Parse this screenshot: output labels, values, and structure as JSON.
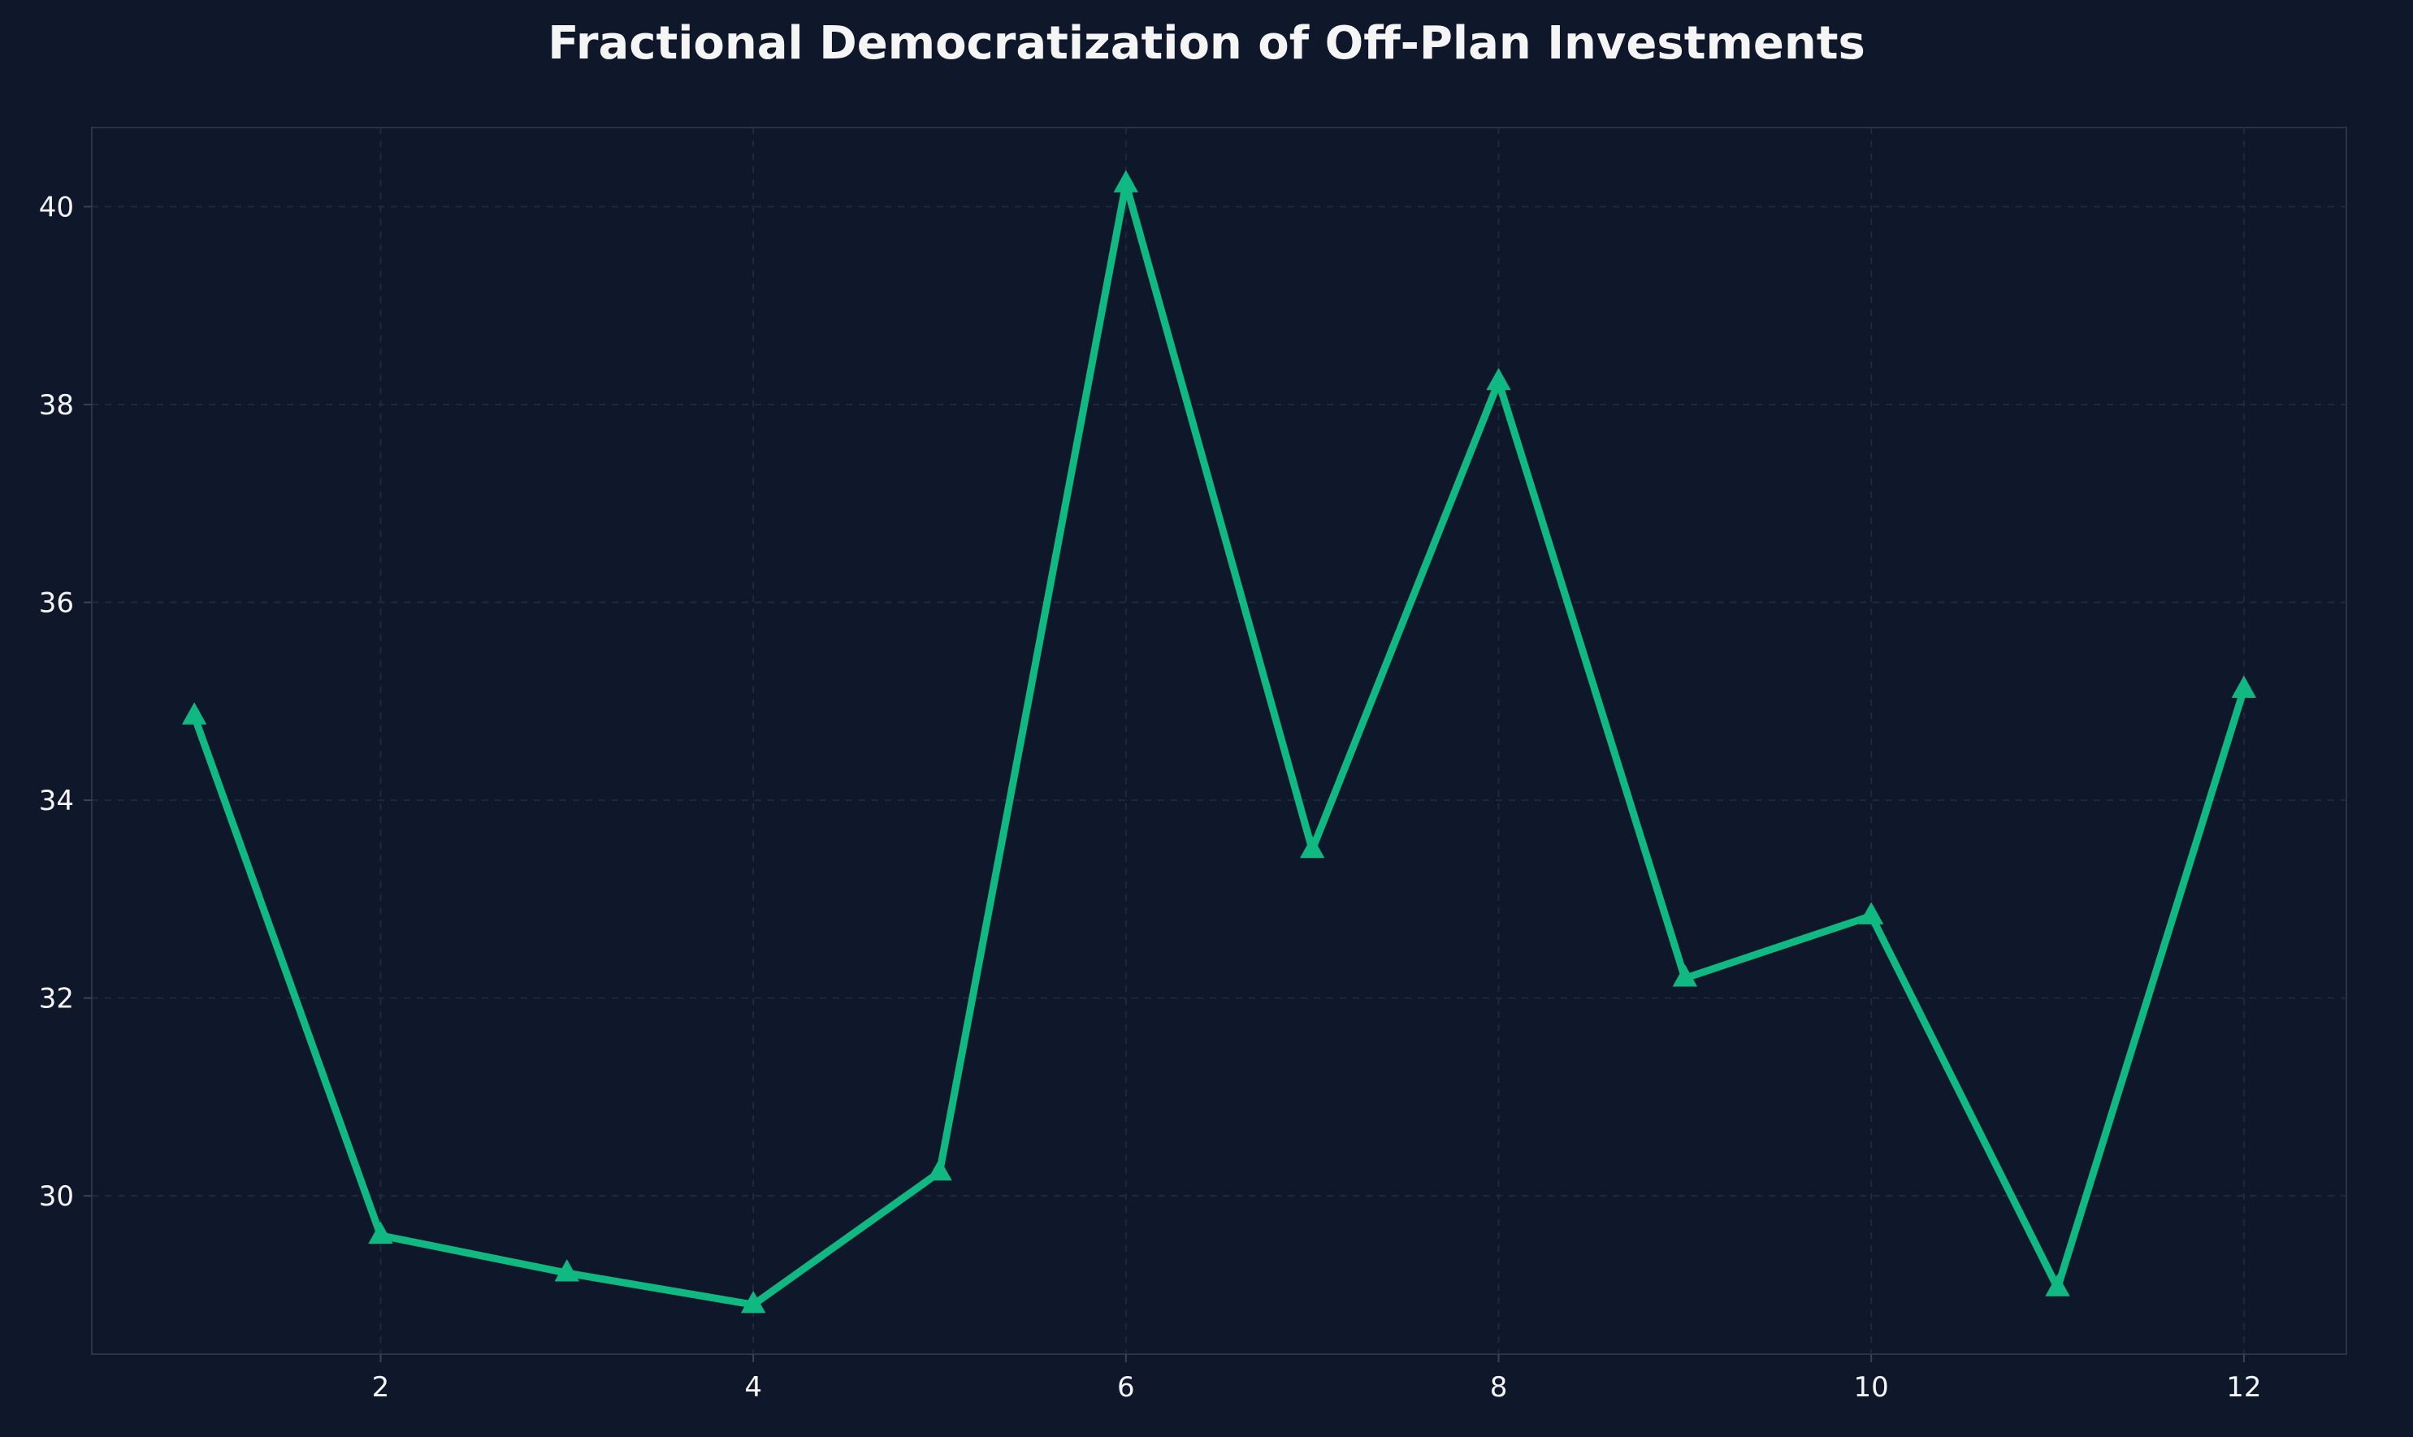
{
  "chart_data": {
    "type": "line",
    "title": "Fractional Democratization of Off-Plan Investments",
    "xlabel": "",
    "ylabel": "",
    "x": [
      1,
      2,
      3,
      4,
      5,
      6,
      7,
      8,
      9,
      10,
      11,
      12
    ],
    "series": [
      {
        "values": [
          34.85,
          29.6,
          29.22,
          28.9,
          30.24,
          40.23,
          33.5,
          38.23,
          32.2,
          32.83,
          29.07,
          35.12
        ],
        "color": "#10b981",
        "marker": "triangle"
      }
    ],
    "xlim": [
      0.45,
      12.55
    ],
    "ylim": [
      28.4,
      40.8
    ],
    "xticks": [
      2,
      4,
      6,
      8,
      10,
      12
    ],
    "yticks": [
      30,
      32,
      34,
      36,
      38,
      40
    ],
    "grid": true,
    "background": "#0f172a",
    "axes_border_color": "#2a3347"
  }
}
